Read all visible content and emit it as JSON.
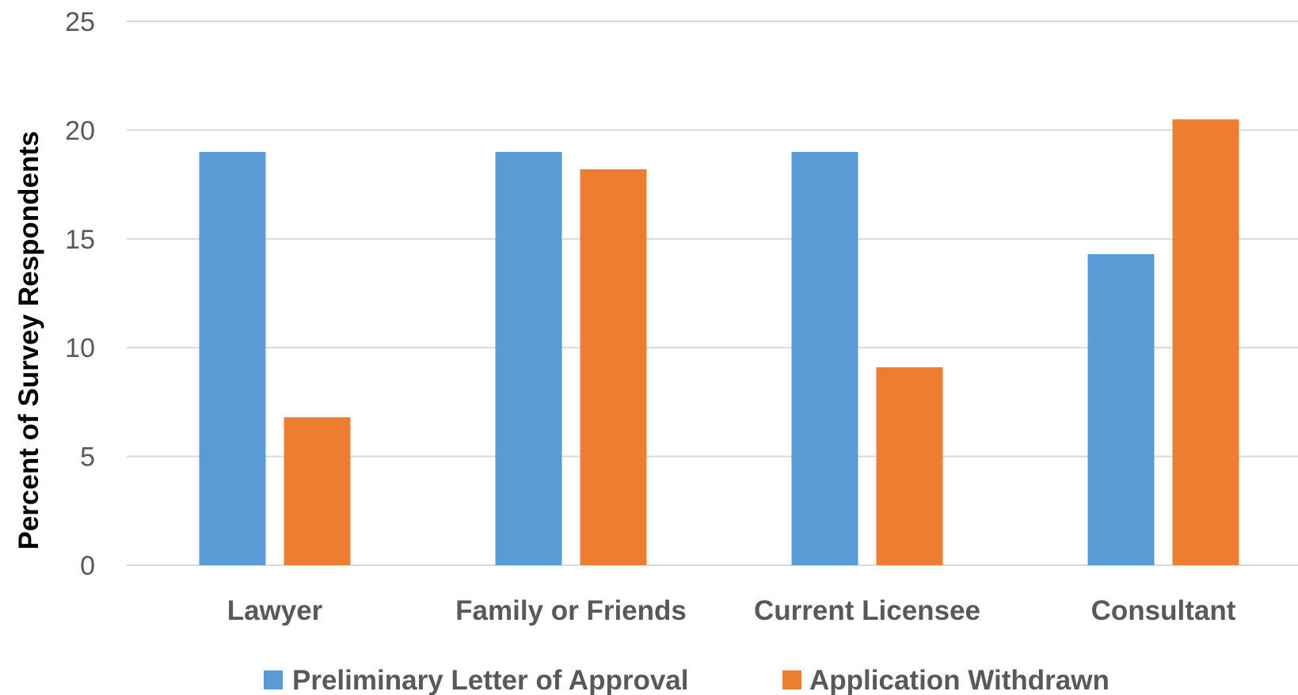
{
  "chart_data": {
    "type": "bar",
    "title": "",
    "xlabel": "",
    "ylabel": "Percent of Survey Respondents",
    "ylim": [
      0,
      25
    ],
    "yticks": [
      0,
      5,
      10,
      15,
      20,
      25
    ],
    "grid": true,
    "legend_position": "bottom",
    "categories": [
      "Lawyer",
      "Family or Friends",
      "Current Licensee",
      "Consultant"
    ],
    "series": [
      {
        "name": "Preliminary Letter of Approval",
        "color": "#5b9bd5",
        "values": [
          19.0,
          19.0,
          19.0,
          14.3
        ]
      },
      {
        "name": "Application Withdrawn",
        "color": "#ed7d31",
        "values": [
          6.8,
          18.2,
          9.1,
          20.5
        ]
      }
    ]
  }
}
